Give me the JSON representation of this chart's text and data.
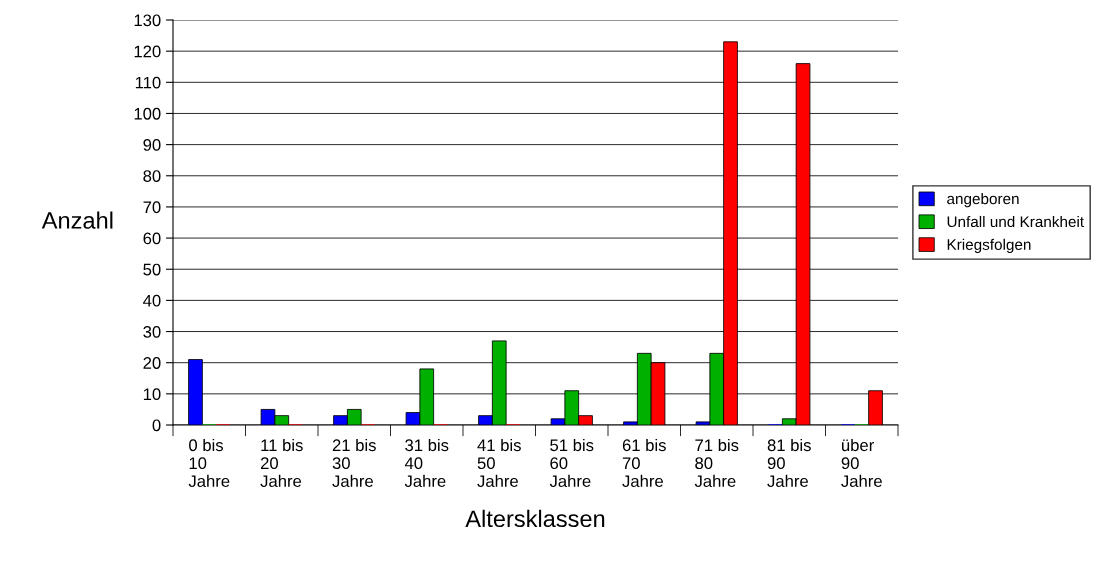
{
  "chart_data": {
    "type": "bar",
    "xlabel": "Altersklassen",
    "ylabel": "Anzahl",
    "categories": [
      "0 bis\n10\nJahre",
      "11 bis\n20\nJahre",
      "21 bis\n30\nJahre",
      "31 bis\n40\nJahre",
      "41 bis\n50\nJahre",
      "51 bis\n60\nJahre",
      "61 bis\n70\nJahre",
      "71 bis\n80\nJahre",
      "81 bis\n90\nJahre",
      "über\n90\nJahre"
    ],
    "series": [
      {
        "name": "angeboren",
        "color": "#0000ff",
        "values": [
          21,
          5,
          3,
          4,
          3,
          2,
          1,
          1,
          0,
          0
        ]
      },
      {
        "name": "Unfall und Krankheit",
        "color": "#00b000",
        "values": [
          0,
          3,
          5,
          18,
          27,
          11,
          23,
          23,
          2,
          0
        ]
      },
      {
        "name": "Kriegsfolgen",
        "color": "#ff0000",
        "values": [
          0,
          0,
          0,
          0,
          0,
          3,
          20,
          123,
          116,
          11
        ]
      }
    ],
    "ylim": [
      0,
      130
    ],
    "yticks": [
      0,
      10,
      20,
      30,
      40,
      50,
      60,
      70,
      80,
      90,
      100,
      110,
      120,
      130
    ],
    "grid": "y",
    "legend": "right"
  }
}
